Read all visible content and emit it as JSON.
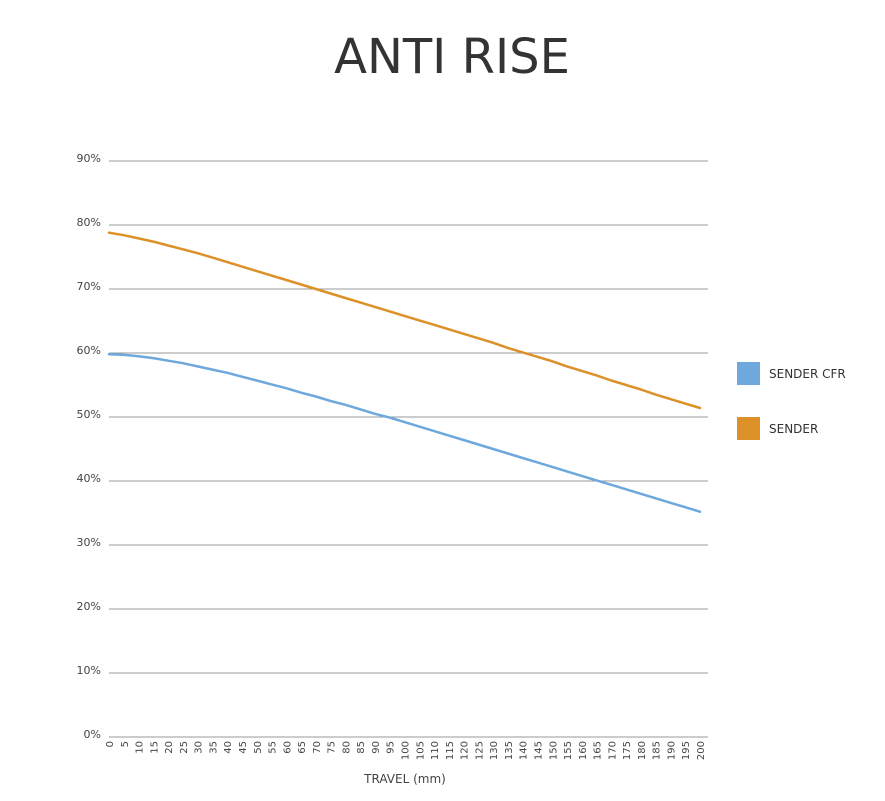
{
  "chart_data": {
    "type": "line",
    "title": "ANTI RISE",
    "xlabel": "TRAVEL (mm)",
    "ylabel": "",
    "x": [
      0,
      5,
      10,
      15,
      20,
      25,
      30,
      35,
      40,
      45,
      50,
      55,
      60,
      65,
      70,
      75,
      80,
      85,
      90,
      95,
      100,
      105,
      110,
      115,
      120,
      125,
      130,
      135,
      140,
      145,
      150,
      155,
      160,
      165,
      170,
      175,
      180,
      185,
      190,
      195,
      200
    ],
    "x_tick_labels": [
      "0",
      "5",
      "10",
      "15",
      "20",
      "25",
      "30",
      "35",
      "40",
      "45",
      "50",
      "55",
      "60",
      "65",
      "70",
      "75",
      "80",
      "85",
      "90",
      "95",
      "100",
      "105",
      "110",
      "115",
      "120",
      "125",
      "130",
      "135",
      "140",
      "145",
      "150",
      "155",
      "160",
      "165",
      "170",
      "175",
      "180",
      "185",
      "190",
      "195",
      "200"
    ],
    "ylim": [
      0,
      90
    ],
    "y_ticks": [
      0,
      10,
      20,
      30,
      40,
      50,
      60,
      70,
      80,
      90
    ],
    "y_tick_labels": [
      "0%",
      "10%",
      "20%",
      "30%",
      "40%",
      "50%",
      "60%",
      "70%",
      "80%",
      "90%"
    ],
    "grid": true,
    "legend_position": "right",
    "series": [
      {
        "name": "SENDER CFR",
        "color": "#6ea8dc",
        "values": [
          59.8,
          59.7,
          59.5,
          59.2,
          58.8,
          58.4,
          57.9,
          57.4,
          56.9,
          56.3,
          55.7,
          55.1,
          54.5,
          53.8,
          53.2,
          52.5,
          51.9,
          51.2,
          50.5,
          49.9,
          49.2,
          48.5,
          47.8,
          47.1,
          46.4,
          45.7,
          45.0,
          44.3,
          43.6,
          42.9,
          42.2,
          41.5,
          40.8,
          40.1,
          39.4,
          38.7,
          38.0,
          37.3,
          36.6,
          35.9,
          35.2
        ]
      },
      {
        "name": "SENDER",
        "color": "#dc9128",
        "values": [
          78.8,
          78.4,
          77.9,
          77.4,
          76.8,
          76.2,
          75.6,
          74.9,
          74.2,
          73.5,
          72.8,
          72.1,
          71.4,
          70.7,
          70.0,
          69.3,
          68.6,
          67.9,
          67.2,
          66.5,
          65.8,
          65.1,
          64.4,
          63.7,
          63.0,
          62.3,
          61.6,
          60.8,
          60.1,
          59.4,
          58.7,
          57.9,
          57.2,
          56.5,
          55.7,
          55.0,
          54.3,
          53.5,
          52.8,
          52.1,
          51.4
        ]
      }
    ]
  }
}
